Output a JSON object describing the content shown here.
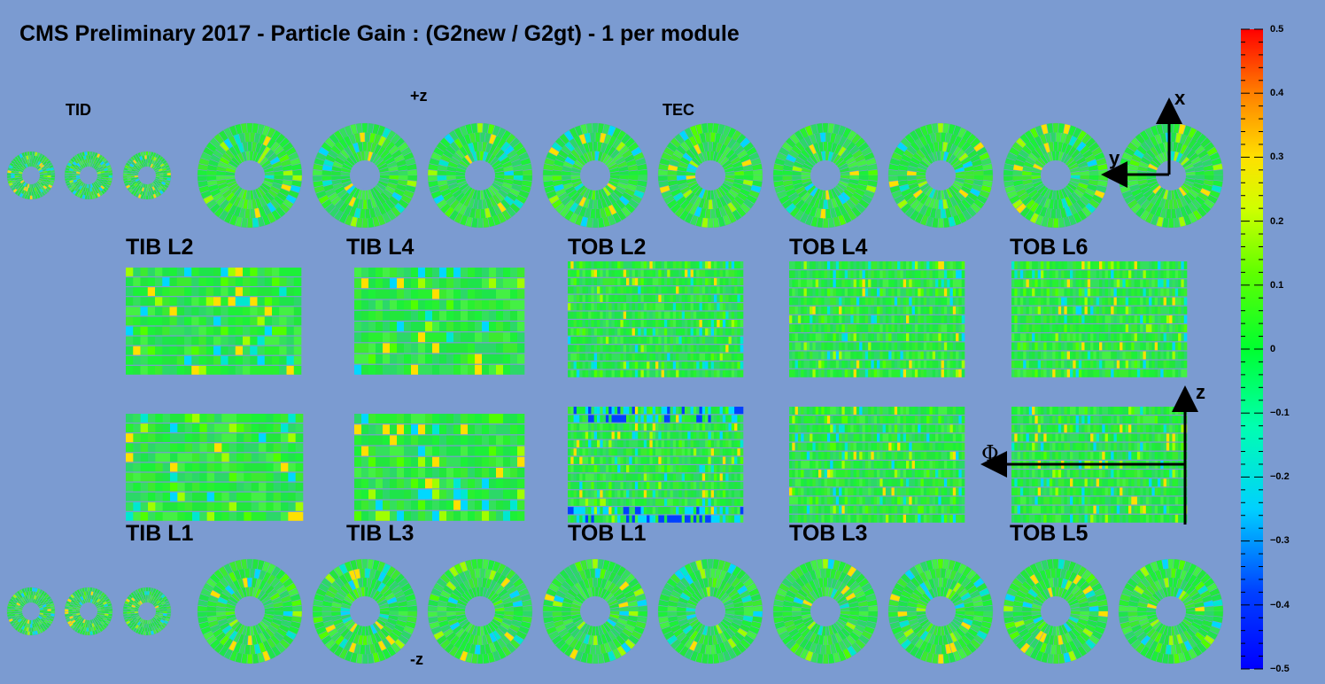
{
  "title": "CMS Preliminary 2017  -  Particle Gain :  (G2new / G2gt) - 1  per module",
  "labels": {
    "tid": "TID",
    "plus_z": "+z",
    "tec": "TEC",
    "minus_z": "-z",
    "axis_x": "x",
    "axis_y": "y",
    "axis_z": "z",
    "axis_phi": "Φ"
  },
  "barrel_layers": {
    "top_row": [
      "TIB L2",
      "TIB L4",
      "TOB L2",
      "TOB L4",
      "TOB L6"
    ],
    "bottom_row": [
      "TIB L1",
      "TIB L3",
      "TOB L1",
      "TOB L3",
      "TOB L5"
    ]
  },
  "colorbar": {
    "min": -0.5,
    "max": 0.5,
    "ticks": [
      "0.5",
      "0.4",
      "0.3",
      "0.2",
      "0.1",
      "0",
      "−0.1",
      "−0.2",
      "−0.3",
      "−0.4",
      "−0.5"
    ],
    "palette": [
      "#0000ff",
      "#0060ff",
      "#00c8ff",
      "#00ffc0",
      "#00ff40",
      "#60ff00",
      "#c8ff00",
      "#ffe000",
      "#ff9000",
      "#ff3000",
      "#ff0000"
    ]
  },
  "colors": {
    "background": "#7b9bd1",
    "module_nominal": "#22e63c"
  }
}
